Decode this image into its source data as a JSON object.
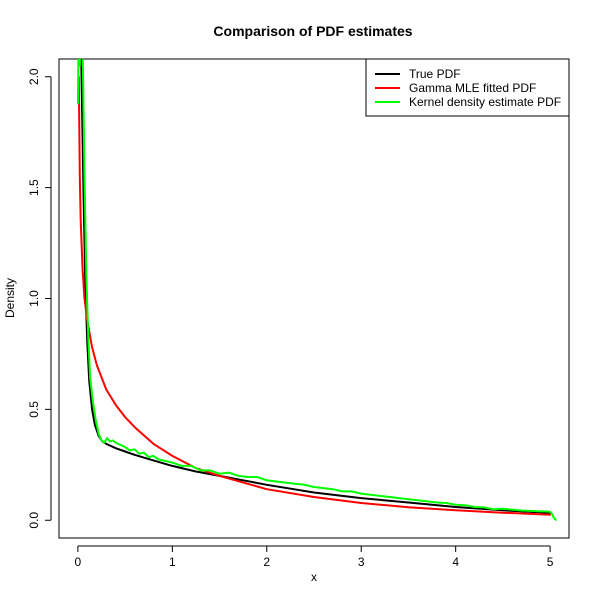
{
  "chart_data": {
    "type": "line",
    "title": "Comparison of PDF estimates",
    "xlabel": "x",
    "ylabel": "Density",
    "xlim": [
      -0.2,
      5.2
    ],
    "ylim": [
      -0.08,
      2.08
    ],
    "x_ticks": [
      0,
      1,
      2,
      3,
      4,
      5
    ],
    "y_ticks": [
      0.0,
      0.5,
      1.0,
      1.5,
      2.0
    ],
    "x_tick_labels": [
      "0",
      "1",
      "2",
      "3",
      "4",
      "5"
    ],
    "y_tick_labels": [
      "0.0",
      "0.5",
      "1.0",
      "1.5",
      "2.0"
    ],
    "grid": false,
    "legend": {
      "position": "top-right",
      "entries": [
        {
          "label": "True PDF",
          "color": "#000000"
        },
        {
          "label": "Gamma MLE fitted PDF",
          "color": "#ff0000"
        },
        {
          "label": "Kernel density estimate PDF",
          "color": "#00ff00"
        }
      ]
    },
    "series": [
      {
        "name": "True PDF",
        "color": "#000000",
        "x": [
          0.02,
          0.04,
          0.06,
          0.08,
          0.1,
          0.12,
          0.15,
          0.18,
          0.22,
          0.26,
          0.3,
          0.35,
          0.4,
          0.5,
          0.6,
          0.8,
          1.0,
          1.25,
          1.5,
          1.75,
          2.0,
          2.5,
          3.0,
          3.5,
          4.0,
          4.5,
          5.0
        ],
        "values": [
          2.5,
          1.95,
          1.45,
          1.05,
          0.8,
          0.63,
          0.5,
          0.43,
          0.38,
          0.355,
          0.345,
          0.335,
          0.325,
          0.31,
          0.295,
          0.27,
          0.245,
          0.22,
          0.2,
          0.18,
          0.16,
          0.125,
          0.1,
          0.08,
          0.06,
          0.045,
          0.033
        ]
      },
      {
        "name": "Gamma MLE fitted PDF",
        "color": "#ff0000",
        "x": [
          0.01,
          0.02,
          0.03,
          0.05,
          0.07,
          0.1,
          0.15,
          0.2,
          0.3,
          0.4,
          0.5,
          0.6,
          0.8,
          1.0,
          1.25,
          1.5,
          2.0,
          2.5,
          3.0,
          3.5,
          4.0,
          4.5,
          5.0
        ],
        "values": [
          2.0,
          1.55,
          1.35,
          1.13,
          1.0,
          0.9,
          0.78,
          0.7,
          0.59,
          0.52,
          0.465,
          0.42,
          0.345,
          0.29,
          0.235,
          0.2,
          0.14,
          0.105,
          0.078,
          0.059,
          0.045,
          0.034,
          0.025
        ]
      },
      {
        "name": "Kernel density estimate PDF",
        "color": "#00ff00",
        "x": [
          0.0,
          0.01,
          0.02,
          0.03,
          0.05,
          0.07,
          0.09,
          0.11,
          0.13,
          0.16,
          0.19,
          0.22,
          0.25,
          0.28,
          0.31,
          0.34,
          0.37,
          0.4,
          0.45,
          0.5,
          0.55,
          0.6,
          0.65,
          0.7,
          0.75,
          0.8,
          0.85,
          0.9,
          0.95,
          1.0,
          1.1,
          1.2,
          1.3,
          1.4,
          1.5,
          1.6,
          1.7,
          1.8,
          1.9,
          2.0,
          2.1,
          2.2,
          2.3,
          2.4,
          2.5,
          2.6,
          2.7,
          2.8,
          2.9,
          3.0,
          3.1,
          3.2,
          3.3,
          3.4,
          3.5,
          3.6,
          3.7,
          3.8,
          3.9,
          4.0,
          4.1,
          4.2,
          4.3,
          4.4,
          4.5,
          4.6,
          4.7,
          4.8,
          4.9,
          4.95,
          5.0,
          5.02,
          5.04,
          5.06
        ],
        "values": [
          1.88,
          2.25,
          2.05,
          2.35,
          2.15,
          1.55,
          1.1,
          0.82,
          0.64,
          0.53,
          0.45,
          0.39,
          0.36,
          0.35,
          0.37,
          0.355,
          0.36,
          0.35,
          0.34,
          0.33,
          0.315,
          0.32,
          0.3,
          0.305,
          0.285,
          0.29,
          0.275,
          0.27,
          0.265,
          0.26,
          0.245,
          0.245,
          0.225,
          0.225,
          0.21,
          0.215,
          0.2,
          0.195,
          0.195,
          0.18,
          0.175,
          0.17,
          0.165,
          0.16,
          0.15,
          0.145,
          0.14,
          0.13,
          0.13,
          0.12,
          0.115,
          0.11,
          0.105,
          0.1,
          0.095,
          0.09,
          0.085,
          0.08,
          0.078,
          0.07,
          0.068,
          0.06,
          0.058,
          0.05,
          0.052,
          0.048,
          0.044,
          0.042,
          0.04,
          0.04,
          0.038,
          0.03,
          0.01,
          0.002
        ]
      }
    ]
  }
}
